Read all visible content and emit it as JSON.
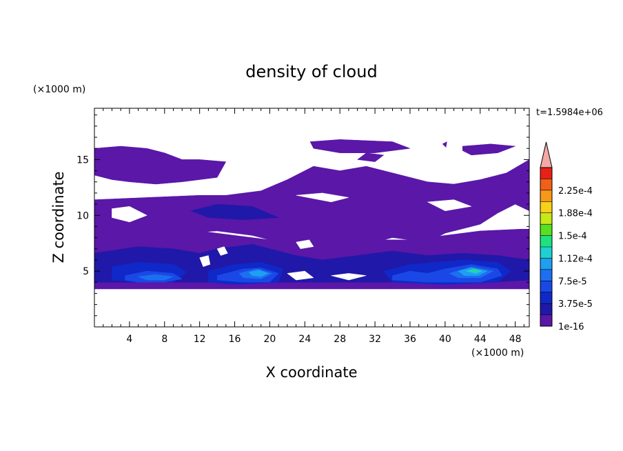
{
  "chart_data": {
    "type": "heatmap",
    "title": "density of cloud",
    "xlabel": "X coordinate",
    "ylabel": "Z coordinate",
    "x_unit": "(×1000 m)",
    "y_unit": "(×1000 m)",
    "time_label": "t=1.5984e+06",
    "xlim": [
      0,
      49.6
    ],
    "ylim": [
      0,
      19.6
    ],
    "x_ticks": [
      4,
      8,
      12,
      16,
      20,
      24,
      28,
      32,
      36,
      40,
      44,
      48
    ],
    "y_ticks": [
      5,
      10,
      15
    ],
    "colorbar": {
      "labels": [
        "2.25e-4",
        "1.88e-4",
        "1.5e-4",
        "1.12e-4",
        "7.5e-5",
        "3.75e-5",
        "1e-16"
      ],
      "levels": [
        1e-16,
        1.87e-05,
        3.75e-05,
        5.62e-05,
        7.5e-05,
        9.37e-05,
        0.0001125,
        0.0001312,
        0.00015,
        0.0001687,
        0.0001875,
        0.0002062,
        0.000225,
        0.0002437
      ],
      "colors": [
        "#5a17a8",
        "#2018a8",
        "#1028c8",
        "#1a48e6",
        "#1c70f0",
        "#1ea0f0",
        "#1fd0d0",
        "#20e080",
        "#58e020",
        "#c8e818",
        "#f8d018",
        "#f89818",
        "#f06018",
        "#e82018"
      ],
      "extend_color": "#f4a8a8",
      "extend": "max"
    },
    "regions": [
      {
        "level": 0,
        "points": [
          [
            0,
            16.0
          ],
          [
            3,
            16.2
          ],
          [
            6,
            16.0
          ],
          [
            8,
            15.6
          ],
          [
            10,
            15.0
          ],
          [
            12,
            15.0
          ],
          [
            15,
            14.8
          ],
          [
            14,
            13.4
          ],
          [
            10,
            13.0
          ],
          [
            7,
            12.8
          ],
          [
            4,
            13.0
          ],
          [
            2,
            13.2
          ],
          [
            0,
            13.6
          ]
        ]
      },
      {
        "level": 0,
        "points": [
          [
            24.6,
            16.6
          ],
          [
            28,
            16.8
          ],
          [
            34,
            16.6
          ],
          [
            36,
            16.0
          ],
          [
            32,
            15.6
          ],
          [
            28,
            15.6
          ],
          [
            25,
            16.0
          ]
        ]
      },
      {
        "level": 0,
        "points": [
          [
            42,
            16.2
          ],
          [
            45.2,
            16.4
          ],
          [
            48,
            16.2
          ],
          [
            46,
            15.6
          ],
          [
            43,
            15.4
          ],
          [
            42,
            15.8
          ]
        ]
      },
      {
        "level": 0,
        "points": [
          [
            30,
            15.0
          ],
          [
            31,
            15.6
          ],
          [
            33,
            15.4
          ],
          [
            32,
            14.8
          ]
        ]
      },
      {
        "level": 0,
        "points": [
          [
            39.7,
            16.4
          ],
          [
            40.2,
            16.6
          ],
          [
            40.1,
            16.1
          ]
        ]
      },
      {
        "level": 0,
        "points": [
          [
            0,
            11.4
          ],
          [
            6,
            11.6
          ],
          [
            12,
            11.8
          ],
          [
            15,
            11.8
          ],
          [
            19,
            12.2
          ],
          [
            22,
            13.2
          ],
          [
            25,
            14.4
          ],
          [
            28,
            14.0
          ],
          [
            31,
            14.4
          ],
          [
            35,
            13.6
          ],
          [
            38,
            13.0
          ],
          [
            41,
            12.8
          ],
          [
            44,
            13.2
          ],
          [
            47,
            13.8
          ],
          [
            49.6,
            15.0
          ],
          [
            49.6,
            10.4
          ],
          [
            48,
            11.0
          ],
          [
            46,
            10.2
          ],
          [
            44,
            9.2
          ],
          [
            42,
            8.8
          ],
          [
            40,
            8.4
          ],
          [
            38,
            7.6
          ],
          [
            36,
            7.8
          ],
          [
            34,
            8.0
          ],
          [
            32,
            7.6
          ],
          [
            28,
            7.2
          ],
          [
            24,
            7.6
          ],
          [
            22,
            7.4
          ],
          [
            20,
            7.8
          ],
          [
            18,
            8.2
          ],
          [
            14,
            8.6
          ],
          [
            10,
            8.4
          ],
          [
            6,
            8.0
          ],
          [
            3,
            7.6
          ],
          [
            0,
            7.4
          ]
        ]
      },
      {
        "level": 0,
        "points": [
          [
            0,
            7.6
          ],
          [
            4,
            7.8
          ],
          [
            8,
            8.2
          ],
          [
            12,
            8.6
          ],
          [
            16,
            8.2
          ],
          [
            20,
            7.8
          ],
          [
            24,
            7.6
          ],
          [
            28,
            7.2
          ],
          [
            32,
            7.8
          ],
          [
            36,
            7.8
          ],
          [
            40,
            8.2
          ],
          [
            44,
            8.6
          ],
          [
            49.6,
            8.8
          ],
          [
            49.6,
            3.4
          ],
          [
            44,
            3.4
          ],
          [
            40,
            3.4
          ],
          [
            36,
            3.4
          ],
          [
            32,
            3.4
          ],
          [
            28,
            3.4
          ],
          [
            24,
            3.4
          ],
          [
            20,
            3.4
          ],
          [
            16,
            3.4
          ],
          [
            12,
            3.4
          ],
          [
            8,
            3.4
          ],
          [
            4,
            3.4
          ],
          [
            0,
            3.4
          ]
        ]
      },
      {
        "level": 1,
        "points": [
          [
            0,
            6.6
          ],
          [
            5,
            7.2
          ],
          [
            9,
            7.0
          ],
          [
            12,
            6.6
          ],
          [
            14,
            7.0
          ],
          [
            18,
            7.4
          ],
          [
            20,
            7.0
          ],
          [
            23,
            6.4
          ],
          [
            26,
            6.0
          ],
          [
            30,
            6.4
          ],
          [
            34,
            6.8
          ],
          [
            38,
            6.4
          ],
          [
            42,
            6.6
          ],
          [
            46,
            6.4
          ],
          [
            49.6,
            6.0
          ],
          [
            49.6,
            4.2
          ],
          [
            45,
            4.0
          ],
          [
            40,
            4.0
          ],
          [
            35,
            4.0
          ],
          [
            30,
            4.0
          ],
          [
            25,
            4.0
          ],
          [
            20,
            4.0
          ],
          [
            15,
            4.0
          ],
          [
            10,
            4.0
          ],
          [
            5,
            4.0
          ],
          [
            0,
            4.0
          ]
        ]
      },
      {
        "level": 1,
        "points": [
          [
            11,
            10.4
          ],
          [
            14,
            11.0
          ],
          [
            18,
            10.8
          ],
          [
            21,
            9.8
          ],
          [
            17,
            9.6
          ],
          [
            13,
            9.8
          ]
        ]
      },
      {
        "level": 2,
        "points": [
          [
            2,
            5.4
          ],
          [
            5,
            5.8
          ],
          [
            9,
            5.6
          ],
          [
            10.5,
            4.9
          ],
          [
            9,
            4.0
          ],
          [
            5,
            4.0
          ],
          [
            2,
            4.2
          ]
        ]
      },
      {
        "level": 2,
        "points": [
          [
            13,
            5.0
          ],
          [
            16,
            5.6
          ],
          [
            19,
            5.8
          ],
          [
            21.5,
            5.2
          ],
          [
            21,
            4.0
          ],
          [
            16,
            3.8
          ],
          [
            13,
            4.0
          ]
        ]
      },
      {
        "level": 2,
        "points": [
          [
            33,
            5.0
          ],
          [
            36,
            5.6
          ],
          [
            39,
            5.8
          ],
          [
            42,
            6.0
          ],
          [
            46,
            5.8
          ],
          [
            47.5,
            5.0
          ],
          [
            46,
            4.0
          ],
          [
            40,
            3.8
          ],
          [
            34,
            4.0
          ]
        ]
      },
      {
        "level": 3,
        "points": [
          [
            3.5,
            4.6
          ],
          [
            6,
            5.0
          ],
          [
            9,
            4.8
          ],
          [
            10,
            4.3
          ],
          [
            8,
            4.0
          ],
          [
            5,
            4.0
          ],
          [
            3.5,
            4.2
          ]
        ]
      },
      {
        "level": 3,
        "points": [
          [
            14,
            4.6
          ],
          [
            17,
            5.2
          ],
          [
            19,
            5.3
          ],
          [
            21,
            4.8
          ],
          [
            20,
            4.0
          ],
          [
            17,
            4.0
          ],
          [
            14,
            4.2
          ]
        ]
      },
      {
        "level": 3,
        "points": [
          [
            34,
            4.6
          ],
          [
            36,
            5.0
          ],
          [
            38,
            4.8
          ],
          [
            40,
            5.2
          ],
          [
            43,
            5.6
          ],
          [
            46,
            5.2
          ],
          [
            46.5,
            4.6
          ],
          [
            44,
            4.0
          ],
          [
            38,
            4.0
          ],
          [
            34,
            4.2
          ]
        ]
      },
      {
        "level": 4,
        "points": [
          [
            5,
            4.5
          ],
          [
            7,
            4.7
          ],
          [
            9,
            4.5
          ],
          [
            8,
            4.2
          ],
          [
            6,
            4.2
          ]
        ]
      },
      {
        "level": 4,
        "points": [
          [
            16.5,
            4.8
          ],
          [
            18.5,
            5.2
          ],
          [
            20.3,
            4.8
          ],
          [
            19,
            4.3
          ],
          [
            17,
            4.4
          ]
        ]
      },
      {
        "level": 4,
        "points": [
          [
            40.5,
            4.8
          ],
          [
            43,
            5.4
          ],
          [
            45.5,
            5.0
          ],
          [
            44,
            4.4
          ],
          [
            41.5,
            4.4
          ]
        ]
      },
      {
        "level": 5,
        "points": [
          [
            17.6,
            4.9
          ],
          [
            18.8,
            5.1
          ],
          [
            19.8,
            4.8
          ],
          [
            19,
            4.5
          ],
          [
            18,
            4.6
          ]
        ]
      },
      {
        "level": 5,
        "points": [
          [
            41.5,
            5.0
          ],
          [
            43,
            5.3
          ],
          [
            44.8,
            5.0
          ],
          [
            43.8,
            4.6
          ],
          [
            42.2,
            4.6
          ]
        ]
      },
      {
        "level": 6,
        "points": [
          [
            42.4,
            5.0
          ],
          [
            43.3,
            5.2
          ],
          [
            44.2,
            5.0
          ],
          [
            43.5,
            4.8
          ]
        ]
      },
      {
        "level": 7,
        "points": [
          [
            42.8,
            5.05
          ],
          [
            43.3,
            5.15
          ],
          [
            43.8,
            5.05
          ],
          [
            43.3,
            4.95
          ]
        ]
      },
      {
        "level": -1,
        "points": [
          [
            2,
            10.6
          ],
          [
            4,
            10.8
          ],
          [
            6,
            10.0
          ],
          [
            4,
            9.4
          ],
          [
            2,
            9.8
          ]
        ]
      },
      {
        "level": -1,
        "points": [
          [
            23,
            11.8
          ],
          [
            26,
            12.0
          ],
          [
            29,
            11.6
          ],
          [
            27,
            11.2
          ]
        ]
      },
      {
        "level": -1,
        "points": [
          [
            38,
            11.2
          ],
          [
            41,
            11.4
          ],
          [
            43,
            10.8
          ],
          [
            40,
            10.4
          ]
        ]
      },
      {
        "level": -1,
        "points": [
          [
            46.5,
            9.4
          ],
          [
            48,
            9.8
          ],
          [
            49.6,
            9.2
          ],
          [
            49.6,
            8.8
          ],
          [
            47.5,
            8.8
          ]
        ]
      },
      {
        "level": -1,
        "points": [
          [
            23,
            7.6
          ],
          [
            24.5,
            7.8
          ],
          [
            25,
            7.2
          ],
          [
            23.5,
            7.0
          ]
        ]
      },
      {
        "level": -1,
        "points": [
          [
            14,
            7.0
          ],
          [
            14.8,
            7.2
          ],
          [
            15.2,
            6.6
          ],
          [
            14.4,
            6.4
          ]
        ]
      },
      {
        "level": -1,
        "points": [
          [
            12,
            6.2
          ],
          [
            13,
            6.4
          ],
          [
            13.2,
            5.6
          ],
          [
            12.4,
            5.4
          ]
        ]
      },
      {
        "level": -1,
        "points": [
          [
            22,
            4.8
          ],
          [
            24,
            5.0
          ],
          [
            25,
            4.4
          ],
          [
            23,
            4.2
          ]
        ]
      },
      {
        "level": -1,
        "points": [
          [
            27,
            4.6
          ],
          [
            29,
            4.8
          ],
          [
            31,
            4.6
          ],
          [
            29,
            4.2
          ]
        ]
      }
    ]
  }
}
